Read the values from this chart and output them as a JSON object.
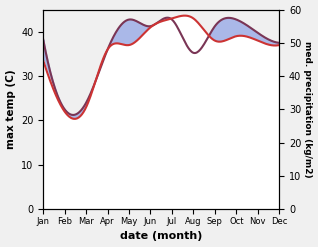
{
  "months": [
    "Jan",
    "Feb",
    "Mar",
    "Apr",
    "May",
    "Jun",
    "Jul",
    "Aug",
    "Sep",
    "Oct",
    "Nov",
    "Dec"
  ],
  "max_temp": [
    33.5,
    22,
    23,
    36,
    37,
    41,
    43,
    43,
    38,
    39,
    38,
    37
  ],
  "med_precip": [
    51,
    30,
    32,
    48,
    57,
    55,
    57,
    47,
    55,
    57,
    53,
    50
  ],
  "temp_color": "#cc3333",
  "precip_color": "#7a3555",
  "precip_fill_color": "#aab8e8",
  "ylabel_left": "max temp (C)",
  "ylabel_right": "med. precipitation (kg/m2)",
  "xlabel": "date (month)",
  "ylim_left": [
    0,
    45
  ],
  "ylim_right": [
    0,
    60
  ],
  "bg_color": "#f0f0f0"
}
